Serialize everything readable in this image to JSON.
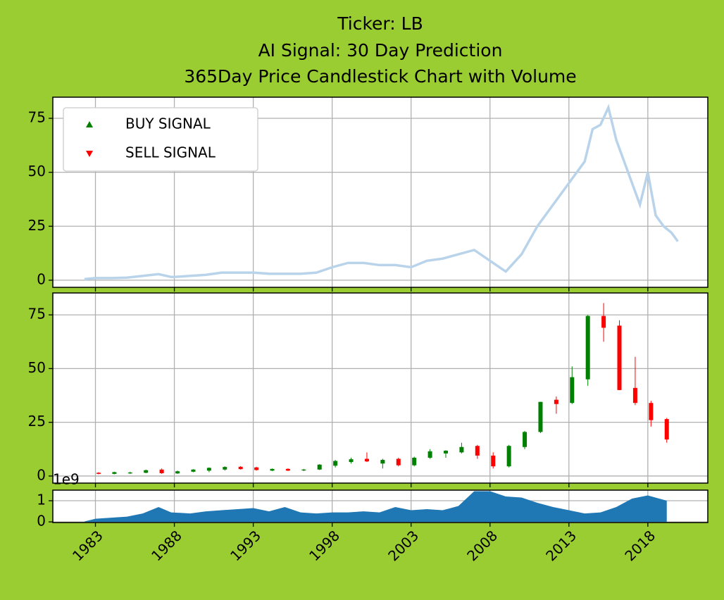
{
  "chart_data": [
    {
      "type": "line",
      "title": [
        "Ticker: LB",
        "AI Signal: 30 Day Prediction",
        "365Day Price Candlestick Chart with Volume"
      ],
      "x": [
        1982.3,
        1983,
        1984,
        1985,
        1986,
        1987,
        1987.8,
        1988,
        1989,
        1990,
        1991,
        1992,
        1993,
        1994,
        1995,
        1996,
        1997,
        1998,
        1999,
        2000,
        2001,
        2002,
        2003,
        2004,
        2005,
        2006,
        2007,
        2008,
        2009,
        2010,
        2011,
        2012,
        2013,
        2014,
        2014.5,
        2015,
        2015.5,
        2016,
        2016.5,
        2017,
        2017.5,
        2018,
        2018.5,
        2019,
        2019.5,
        2019.9
      ],
      "y": [
        0.5,
        1,
        1,
        1.2,
        2,
        2.8,
        1.5,
        1.5,
        2,
        2.5,
        3.5,
        3.5,
        3.5,
        3,
        3,
        3,
        3.5,
        6,
        8,
        8,
        7,
        7,
        6,
        9,
        10,
        12,
        14,
        9,
        4,
        12,
        25,
        35,
        45,
        55,
        70,
        72,
        80,
        65,
        55,
        45,
        35,
        50,
        30,
        25,
        22,
        18
      ],
      "color": "#b9d4ea",
      "legend": [
        {
          "name": "BUY SIGNAL",
          "color": "green",
          "marker": "^"
        },
        {
          "name": "SELL SIGNAL",
          "color": "red",
          "marker": "v"
        }
      ],
      "xlim": [
        1980.3,
        2021.8
      ],
      "xticks": [
        1983,
        1988,
        1993,
        1998,
        2003,
        2008,
        2013,
        2018
      ],
      "ylim": [
        -3.3,
        84.8
      ],
      "yticks": [
        0,
        25,
        50,
        75
      ],
      "grid": true
    },
    {
      "type": "candlestick",
      "x": [
        1983.2,
        1984.2,
        1985.2,
        1986.2,
        1987.2,
        1988.2,
        1989.2,
        1990.2,
        1991.2,
        1992.2,
        1993.2,
        1994.2,
        1995.2,
        1996.2,
        1997.2,
        1998.2,
        1999.2,
        2000.2,
        2001.2,
        2002.2,
        2003.2,
        2004.2,
        2005.2,
        2006.2,
        2007.2,
        2008.2,
        2009.2,
        2010.2,
        2011.2,
        2012.2,
        2013.2,
        2014.2,
        2015.2,
        2016.2,
        2017.2,
        2018.2,
        2019.2
      ],
      "open": [
        1.5,
        1,
        1.2,
        1.5,
        3,
        1.2,
        2,
        2.5,
        3,
        4.3,
        4,
        2.5,
        3.3,
        2.6,
        3,
        4.8,
        6.5,
        8,
        5.8,
        8,
        5,
        8.5,
        10.5,
        11,
        14,
        9.5,
        4.5,
        13.5,
        20.5,
        35.5,
        34,
        45,
        74.5,
        70,
        41,
        34,
        26.5
      ],
      "high": [
        1.8,
        2,
        2,
        3,
        3.5,
        2.5,
        3.2,
        4,
        4.5,
        4.6,
        4.3,
        3.5,
        3.6,
        3.3,
        5.5,
        7.5,
        8.5,
        11,
        8,
        8.5,
        9,
        12.5,
        12,
        15.5,
        14.5,
        11,
        14.5,
        21,
        34.5,
        37,
        51,
        75,
        80.5,
        72.5,
        55.5,
        35,
        27
      ],
      "low": [
        0.8,
        0.8,
        1,
        1.3,
        1,
        1,
        1.8,
        1.8,
        2.5,
        3,
        2.5,
        2.3,
        2.3,
        2.3,
        2.8,
        4,
        5.8,
        6.5,
        3.5,
        4.5,
        4.5,
        8,
        8.5,
        10.5,
        8,
        3.5,
        4,
        12.5,
        20,
        29,
        33.5,
        42,
        62.5,
        40,
        33,
        23,
        15.5
      ],
      "close": [
        1,
        1.8,
        1.6,
        2.7,
        1.3,
        2.2,
        3,
        3.8,
        4.2,
        3.2,
        2.8,
        3.3,
        2.5,
        3,
        5.3,
        7,
        7.8,
        6.8,
        7.5,
        5,
        8.5,
        11.5,
        11.8,
        13.5,
        9.5,
        4.5,
        14,
        20.5,
        34.5,
        33.5,
        46,
        74.5,
        69,
        40,
        34,
        26,
        17
      ],
      "up_color": "green",
      "down_color": "red",
      "xlim": [
        1980.3,
        2021.8
      ],
      "xticks": [
        1983,
        1988,
        1993,
        1998,
        2003,
        2008,
        2013,
        2018
      ],
      "ylim": [
        -3.3,
        85.2
      ],
      "yticks": [
        0,
        25,
        50,
        75
      ],
      "grid": true
    },
    {
      "type": "area",
      "offset_label": "1e9",
      "x": [
        1982.3,
        1983,
        1984,
        1985,
        1986,
        1987,
        1987.8,
        1989,
        1990,
        1991,
        1992,
        1993,
        1994,
        1995,
        1996,
        1997,
        1998,
        1999,
        2000,
        2001,
        2002,
        2003,
        2004,
        2005,
        2006,
        2007,
        2008,
        2009,
        2010,
        2011,
        2012,
        2013,
        2014,
        2015,
        2016,
        2017,
        2018,
        2019.2
      ],
      "values": [
        0.02,
        0.15,
        0.2,
        0.25,
        0.4,
        0.7,
        0.45,
        0.4,
        0.5,
        0.55,
        0.6,
        0.65,
        0.5,
        0.7,
        0.45,
        0.4,
        0.45,
        0.45,
        0.5,
        0.45,
        0.7,
        0.55,
        0.6,
        0.55,
        0.75,
        1.45,
        1.45,
        1.2,
        1.15,
        0.9,
        0.7,
        0.55,
        0.4,
        0.45,
        0.7,
        1.1,
        1.25,
        1.0
      ],
      "color": "#1f77b4",
      "xlim": [
        1980.3,
        2021.8
      ],
      "xticks": [
        1983,
        1988,
        1993,
        1998,
        2003,
        2008,
        2013,
        2018
      ],
      "ylim": [
        -0.03,
        1.5
      ],
      "yticks": [
        0,
        1
      ],
      "grid": true
    }
  ]
}
